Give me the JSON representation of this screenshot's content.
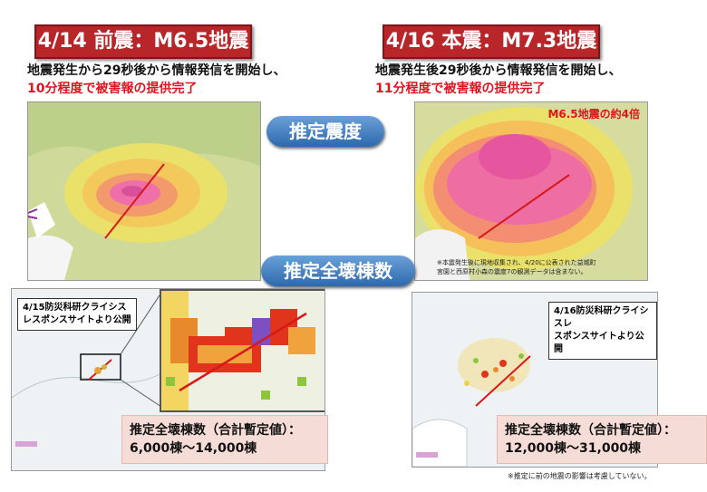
{
  "left": {
    "banner": "4/14 前震：M6.5地震",
    "desc_line1": "地震発生から29秒後から情報発信を開始し、",
    "desc_line2": "10分程度で被害報の提供完了",
    "callout_line1": "4/15防災科研クライシス",
    "callout_line2": "レスポンスサイトより公開",
    "est_label": "推定全壊棟数（合計暫定値）：",
    "est_value": "6,000棟～14,000棟"
  },
  "right": {
    "banner": "4/16 本震：M7.3地震",
    "desc_line1": "地震発生後29秒後から情報発信を開始し、",
    "desc_line2": "11分程度で被害報の提供完了",
    "map_overlay": "M6.5地震の約4倍",
    "map_note_line1": "※本震発生後に現地収集され、4/20に公表された益城町",
    "map_note_line2": "宮園と西原村小森の震度7の観測データは含まない。",
    "callout_line1": "4/16防災科研クライシスレ",
    "callout_line2": "スポンスサイトより公開",
    "est_label": "推定全壊棟数（合計暫定値）：",
    "est_value": "12,000棟～31,000棟",
    "footnote": "※推定に前の地震の影響は考慮していない。"
  },
  "center": {
    "intensity_pill": "推定震度",
    "collapse_pill": "推定全壊棟数"
  },
  "colors": {
    "banner_red": "#b8262a",
    "highlight_red": "#e0141e",
    "pill_blue": "#2d69ad",
    "estimate_box": "#f6dcd6"
  }
}
